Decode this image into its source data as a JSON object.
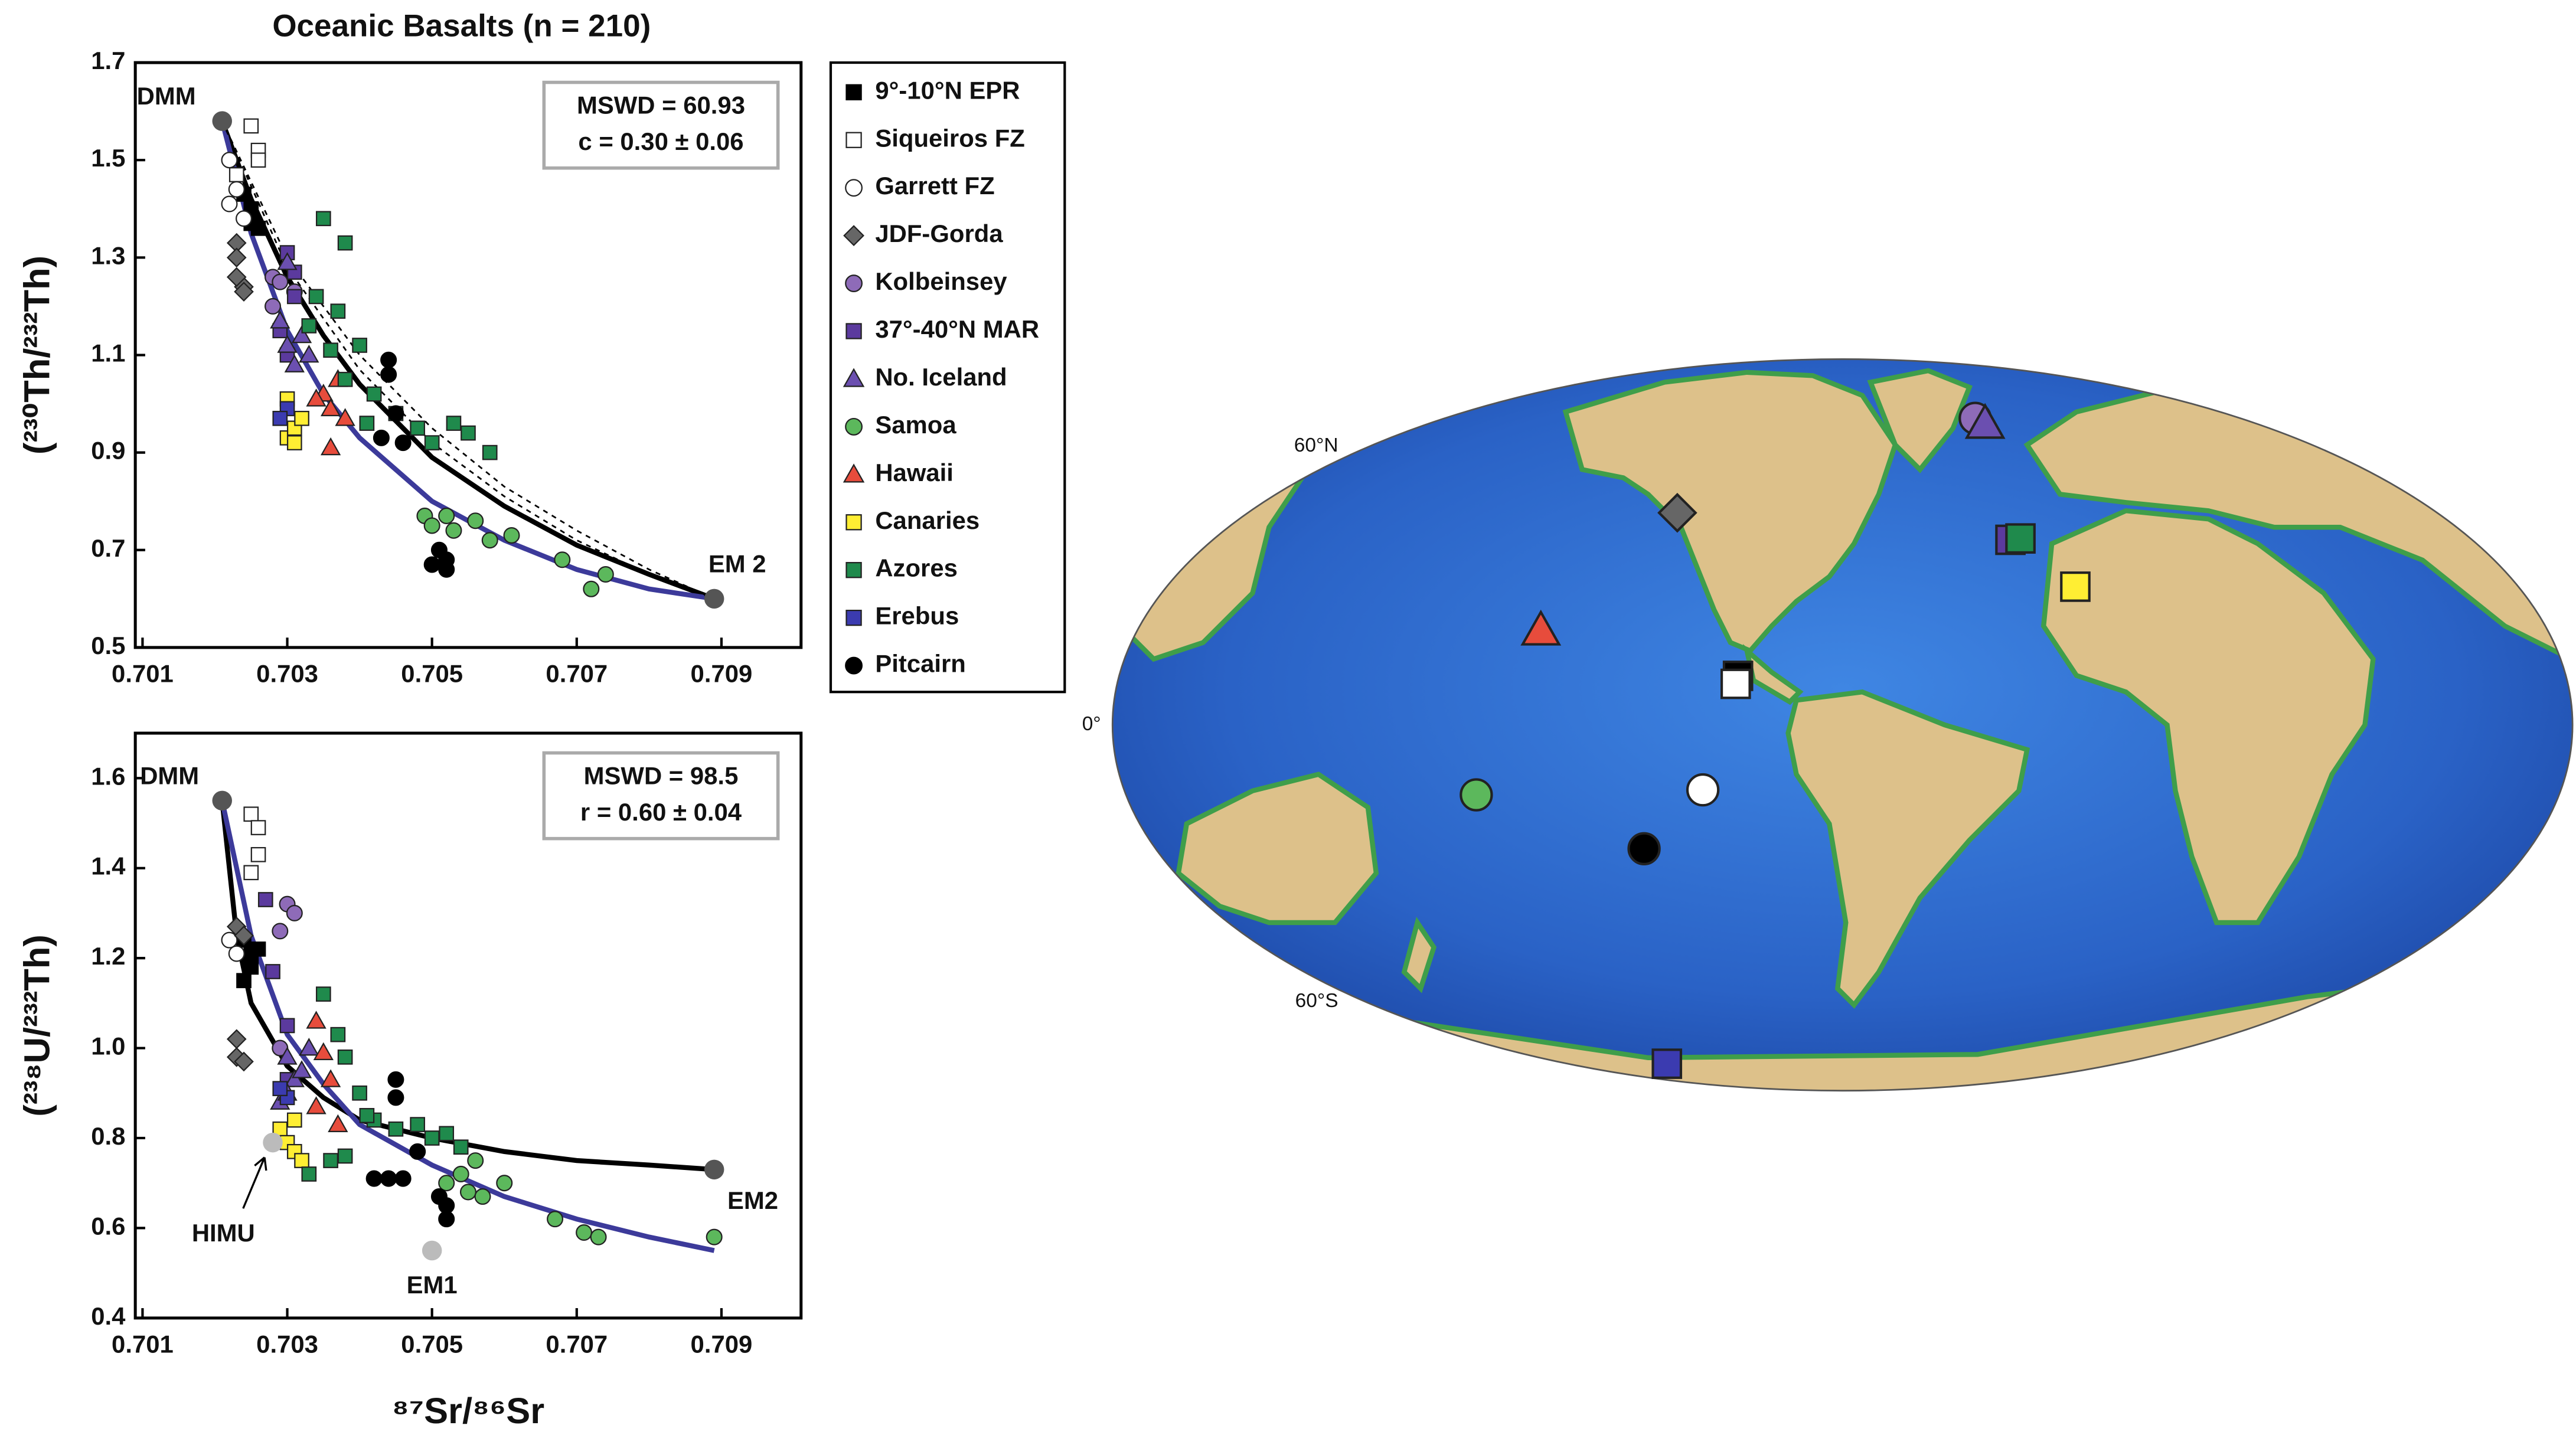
{
  "chart_data": [
    {
      "type": "scatter",
      "title": "Oceanic Basalts (n = 210)",
      "ylabel": "(²³⁰Th/²³²Th)",
      "xlim": [
        0.7009,
        0.7101
      ],
      "xticks": [
        0.701,
        0.703,
        0.705,
        0.707,
        0.709
      ],
      "ylim": [
        0.5,
        1.7
      ],
      "yticks": [
        0.5,
        0.7,
        0.9,
        1.1,
        1.3,
        1.5,
        1.7
      ],
      "annotations": [
        "MSWD = 60.93",
        "c = 0.30 ± 0.06"
      ],
      "endmembers": [
        {
          "label": "DMM",
          "x": 0.7021,
          "y": 1.58,
          "color": "#555555"
        },
        {
          "label": "EM 2",
          "x": 0.7089,
          "y": 0.6,
          "color": "#555555"
        }
      ],
      "curves": [
        {
          "color": "#000000",
          "dashed": false,
          "x": [
            0.7021,
            0.7025,
            0.703,
            0.7035,
            0.704,
            0.705,
            0.706,
            0.707,
            0.708,
            0.7089
          ],
          "values": [
            1.58,
            1.42,
            1.26,
            1.14,
            1.04,
            0.89,
            0.79,
            0.71,
            0.65,
            0.6
          ]
        },
        {
          "color": "#3c3a9a",
          "dashed": false,
          "x": [
            0.7021,
            0.7025,
            0.703,
            0.7035,
            0.704,
            0.705,
            0.706,
            0.707,
            0.708,
            0.7089
          ],
          "values": [
            1.58,
            1.35,
            1.15,
            1.02,
            0.93,
            0.8,
            0.72,
            0.66,
            0.62,
            0.6
          ]
        },
        {
          "color": "#000000",
          "dashed": true,
          "x": [
            0.7021,
            0.703,
            0.704,
            0.705,
            0.706,
            0.707,
            0.708,
            0.7089
          ],
          "values": [
            1.58,
            1.3,
            1.1,
            0.95,
            0.83,
            0.74,
            0.66,
            0.6
          ]
        },
        {
          "color": "#000000",
          "dashed": true,
          "x": [
            0.7021,
            0.703,
            0.704,
            0.705,
            0.706,
            0.707,
            0.708,
            0.7089
          ],
          "values": [
            1.58,
            1.28,
            1.07,
            0.92,
            0.81,
            0.72,
            0.65,
            0.6
          ]
        }
      ],
      "series": [
        {
          "name": "9°-10°N EPR",
          "color": "#000000",
          "marker": "square",
          "x": [
            0.7024,
            0.7025,
            0.7025,
            0.7026
          ],
          "values": [
            1.43,
            1.4,
            1.37,
            1.36
          ]
        },
        {
          "name": "Siqueiros FZ",
          "color": "#ffffff",
          "marker": "square",
          "x": [
            0.7025,
            0.7026,
            0.7026,
            0.7023
          ],
          "values": [
            1.57,
            1.52,
            1.5,
            1.47
          ]
        },
        {
          "name": "Garrett FZ",
          "color": "#ffffff",
          "marker": "circle",
          "x": [
            0.7022,
            0.7022,
            0.7024,
            0.7023
          ],
          "values": [
            1.5,
            1.41,
            1.38,
            1.44
          ]
        },
        {
          "name": "JDF-Gorda",
          "color": "#666666",
          "marker": "diamond",
          "x": [
            0.7023,
            0.7023,
            0.7024,
            0.7023,
            0.7024
          ],
          "values": [
            1.33,
            1.3,
            1.24,
            1.26,
            1.23
          ]
        },
        {
          "name": "Kolbeinsey",
          "color": "#8e6bb8",
          "marker": "circle",
          "x": [
            0.7028,
            0.7029,
            0.7028,
            0.7031
          ],
          "values": [
            1.26,
            1.25,
            1.2,
            1.23
          ]
        },
        {
          "name": "37°-40°N MAR",
          "color": "#5b3a9e",
          "marker": "square",
          "x": [
            0.703,
            0.7031,
            0.7031,
            0.7029,
            0.703
          ],
          "values": [
            1.31,
            1.27,
            1.22,
            1.15,
            1.1
          ]
        },
        {
          "name": "No. Iceland",
          "color": "#6b4fb0",
          "marker": "triangle",
          "x": [
            0.7029,
            0.703,
            0.7031,
            0.7032,
            0.7033,
            0.703
          ],
          "values": [
            1.17,
            1.12,
            1.08,
            1.14,
            1.1,
            1.29
          ]
        },
        {
          "name": "Samoa",
          "color": "#5cb85c",
          "marker": "circle",
          "x": [
            0.7049,
            0.705,
            0.7052,
            0.7053,
            0.7056,
            0.7058,
            0.7068,
            0.7072,
            0.7074,
            0.7061
          ],
          "values": [
            0.77,
            0.75,
            0.77,
            0.74,
            0.76,
            0.72,
            0.68,
            0.62,
            0.65,
            0.73
          ]
        },
        {
          "name": "Hawaii",
          "color": "#e74c3c",
          "marker": "triangle",
          "x": [
            0.7035,
            0.7036,
            0.7037,
            0.7038,
            0.7036,
            0.7034
          ],
          "values": [
            1.02,
            0.99,
            1.05,
            0.97,
            0.91,
            1.01
          ]
        },
        {
          "name": "Canaries",
          "color": "#ffee33",
          "marker": "square",
          "x": [
            0.703,
            0.7031,
            0.7032,
            0.703,
            0.7031
          ],
          "values": [
            0.93,
            0.95,
            0.97,
            1.01,
            0.92
          ]
        },
        {
          "name": "Azores",
          "color": "#1f8a4c",
          "marker": "square",
          "x": [
            0.7035,
            0.7038,
            0.7034,
            0.7037,
            0.704,
            0.7038,
            0.7042,
            0.7045,
            0.7048,
            0.705,
            0.7053,
            0.7055,
            0.7058,
            0.7036,
            0.7041,
            0.7033
          ],
          "values": [
            1.38,
            1.33,
            1.22,
            1.19,
            1.12,
            1.05,
            1.02,
            0.98,
            0.95,
            0.92,
            0.96,
            0.94,
            0.9,
            1.11,
            0.96,
            1.16
          ]
        },
        {
          "name": "Erebus",
          "color": "#3b3bb0",
          "marker": "square",
          "x": [
            0.703,
            0.7029
          ],
          "values": [
            0.99,
            0.97
          ]
        },
        {
          "name": "Pitcairn",
          "color": "#000000",
          "marker": "circle",
          "x": [
            0.7044,
            0.7044,
            0.7045,
            0.7043,
            0.7046,
            0.7051,
            0.7052,
            0.7052,
            0.705
          ],
          "values": [
            1.09,
            1.06,
            0.98,
            0.93,
            0.92,
            0.7,
            0.68,
            0.66,
            0.67
          ]
        }
      ]
    },
    {
      "type": "scatter",
      "ylabel": "(²³⁸U/²³²Th)",
      "xlabel": "⁸⁷Sr/⁸⁶Sr",
      "xlim": [
        0.7009,
        0.7101
      ],
      "xticks": [
        0.701,
        0.703,
        0.705,
        0.707,
        0.709
      ],
      "ylim": [
        0.4,
        1.7
      ],
      "yticks": [
        0.4,
        0.6,
        0.8,
        {
          "value": 1,
          "label": "1.0"
        },
        1.2,
        1.4,
        1.6
      ],
      "annotations": [
        "MSWD = 98.5",
        "r = 0.60 ± 0.04"
      ],
      "endmembers": [
        {
          "label": "DMM",
          "x": 0.7021,
          "y": 1.55,
          "color": "#555555"
        },
        {
          "label": "EM2",
          "x": 0.7089,
          "y": 0.73,
          "color": "#555555"
        },
        {
          "label": "HIMU",
          "x": 0.7028,
          "y": 0.79,
          "color": "#bbbbbb"
        },
        {
          "label": "EM1",
          "x": 0.705,
          "y": 0.55,
          "color": "#bbbbbb"
        }
      ],
      "curves": [
        {
          "color": "#000000",
          "dashed": false,
          "x": [
            0.7021,
            0.7023,
            0.7025,
            0.703,
            0.7035,
            0.704,
            0.705,
            0.706,
            0.707,
            0.708,
            0.7089
          ],
          "values": [
            1.55,
            1.25,
            1.1,
            0.96,
            0.89,
            0.84,
            0.8,
            0.77,
            0.75,
            0.74,
            0.73
          ]
        },
        {
          "color": "#3c3a9a",
          "dashed": false,
          "x": [
            0.7021,
            0.7025,
            0.703,
            0.7035,
            0.704,
            0.705,
            0.706,
            0.707,
            0.708,
            0.7089
          ],
          "values": [
            1.55,
            1.25,
            1.03,
            0.92,
            0.83,
            0.74,
            0.67,
            0.62,
            0.58,
            0.55
          ]
        }
      ],
      "series": [
        {
          "x": [
            0.7024,
            0.7025,
            0.7025,
            0.7024,
            0.7026
          ],
          "values": [
            1.24,
            1.21,
            1.18,
            1.15,
            1.22
          ]
        },
        {
          "x": [
            0.7025,
            0.7026,
            0.7026,
            0.7025
          ],
          "values": [
            1.52,
            1.49,
            1.43,
            1.39
          ]
        },
        {
          "x": [
            0.7022,
            0.7023
          ],
          "values": [
            1.24,
            1.21
          ]
        },
        {
          "x": [
            0.7023,
            0.7023,
            0.7023,
            0.7024,
            0.7024
          ],
          "values": [
            1.27,
            1.02,
            0.98,
            0.97,
            1.25
          ]
        },
        {
          "x": [
            0.703,
            0.7031,
            0.7029,
            0.7029
          ],
          "values": [
            1.32,
            1.3,
            1.26,
            1.0
          ]
        },
        {
          "x": [
            0.7027,
            0.7028,
            0.703,
            0.703
          ],
          "values": [
            1.33,
            1.17,
            1.05,
            0.93
          ]
        },
        {
          "x": [
            0.703,
            0.7031,
            0.7029,
            0.7032,
            0.7033,
            0.703
          ],
          "values": [
            0.98,
            0.93,
            0.88,
            0.95,
            1.0,
            0.9
          ]
        },
        {
          "x": [
            0.7052,
            0.7054,
            0.7055,
            0.7057,
            0.706,
            0.7067,
            0.7071,
            0.7073,
            0.7089,
            0.7056
          ],
          "values": [
            0.7,
            0.72,
            0.68,
            0.67,
            0.7,
            0.62,
            0.59,
            0.58,
            0.58,
            0.75
          ]
        },
        {
          "x": [
            0.7034,
            0.7035,
            0.7036,
            0.7034,
            0.7037
          ],
          "values": [
            1.06,
            0.99,
            0.93,
            0.87,
            0.83
          ]
        },
        {
          "x": [
            0.7029,
            0.703,
            0.7031,
            0.7032,
            0.7031
          ],
          "values": [
            0.82,
            0.79,
            0.77,
            0.75,
            0.84
          ]
        },
        {
          "x": [
            0.7035,
            0.7037,
            0.7038,
            0.704,
            0.7042,
            0.7045,
            0.7048,
            0.705,
            0.7052,
            0.7054,
            0.7036,
            0.7038,
            0.7033,
            0.7041
          ],
          "values": [
            1.12,
            1.03,
            0.98,
            0.9,
            0.84,
            0.82,
            0.83,
            0.8,
            0.81,
            0.78,
            0.75,
            0.76,
            0.72,
            0.85
          ]
        },
        {
          "x": [
            0.703,
            0.7029
          ],
          "values": [
            0.89,
            0.91
          ]
        },
        {
          "x": [
            0.7045,
            0.7045,
            0.7042,
            0.7044,
            0.7046,
            0.7051,
            0.7052,
            0.7052,
            0.7048
          ],
          "values": [
            0.93,
            0.89,
            0.71,
            0.71,
            0.71,
            0.67,
            0.65,
            0.62,
            0.77
          ]
        }
      ]
    }
  ],
  "map": {
    "lat_labels": [
      "60°N",
      "0°",
      "60°S"
    ],
    "sites": [
      {
        "series": 0,
        "lon": -104,
        "lat": 9.8
      },
      {
        "series": 1,
        "lon": -104.5,
        "lat": 8.2
      },
      {
        "series": 2,
        "lon": -113,
        "lat": -13
      },
      {
        "series": 3,
        "lon": -128,
        "lat": 44
      },
      {
        "series": 4,
        "lon": -18,
        "lat": 67.5
      },
      {
        "series": 5,
        "lon": -30,
        "lat": 38
      },
      {
        "series": 6,
        "lon": -16,
        "lat": 66
      },
      {
        "series": 7,
        "lon": -170,
        "lat": -14
      },
      {
        "series": 8,
        "lon": -155,
        "lat": 19
      },
      {
        "series": 9,
        "lon": -16,
        "lat": 28
      },
      {
        "series": 10,
        "lon": -27,
        "lat": 38.3
      },
      {
        "series": 11,
        "lon": 167,
        "lat": -77.5
      },
      {
        "series": 12,
        "lon": -130,
        "lat": -25
      }
    ]
  }
}
